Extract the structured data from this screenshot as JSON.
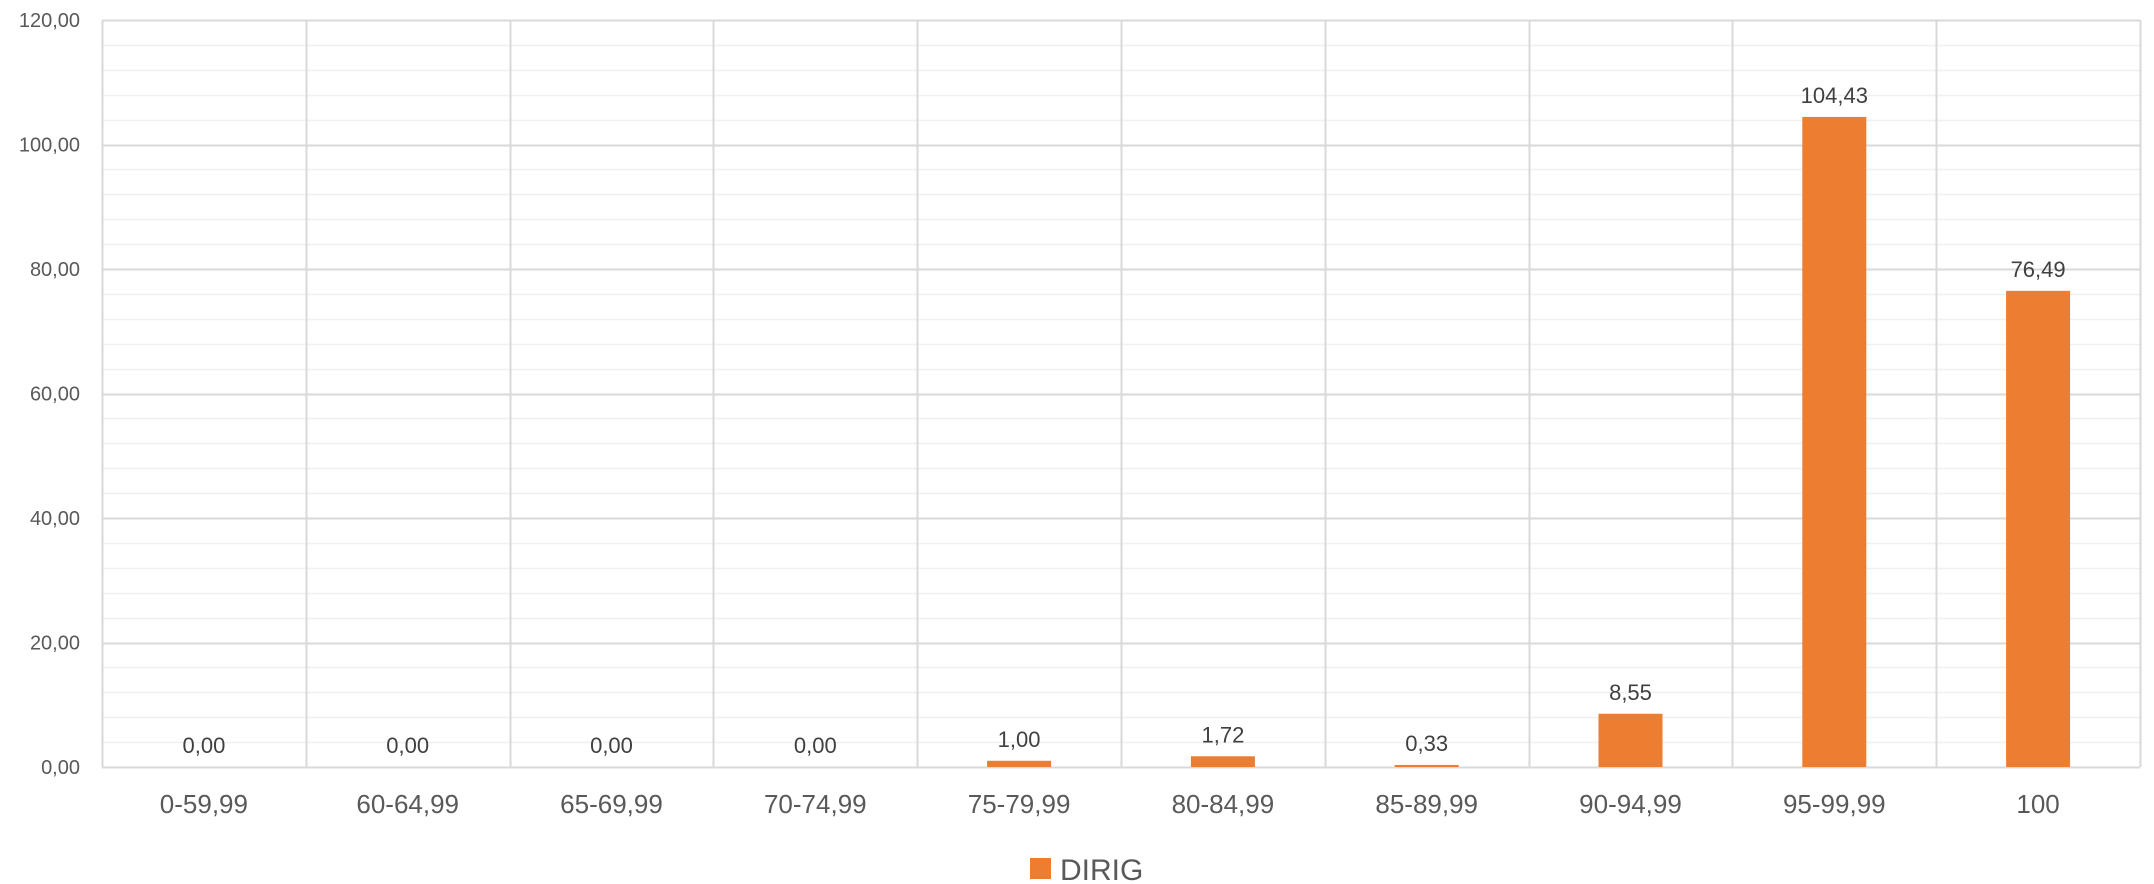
{
  "chart_data": {
    "type": "bar",
    "categories": [
      "0-59,99",
      "60-64,99",
      "65-69,99",
      "70-74,99",
      "75-79,99",
      "80-84,99",
      "85-89,99",
      "90-94,99",
      "95-99,99",
      "100"
    ],
    "series": [
      {
        "name": "DIRIG",
        "values": [
          0.0,
          0.0,
          0.0,
          0.0,
          1.0,
          1.72,
          0.33,
          8.55,
          104.43,
          76.49
        ],
        "labels": [
          "0,00",
          "0,00",
          "0,00",
          "0,00",
          "1,00",
          "1,72",
          "0,33",
          "8,55",
          "104,43",
          "76,49"
        ],
        "color": "#ED7D31"
      }
    ],
    "ylim": [
      0,
      120
    ],
    "yticks": [
      0,
      20,
      40,
      60,
      80,
      100,
      120
    ],
    "ytick_labels": [
      "0,00",
      "20,00",
      "40,00",
      "60,00",
      "80,00",
      "100,00",
      "120,00"
    ],
    "grid": true,
    "minor_grid": true,
    "legend": "bottom-center",
    "title": "",
    "xlabel": "",
    "ylabel": ""
  },
  "colors": {
    "major_grid": "#D9D9D9",
    "minor_grid": "#F0F0F0",
    "bar": "#ED7D31"
  }
}
